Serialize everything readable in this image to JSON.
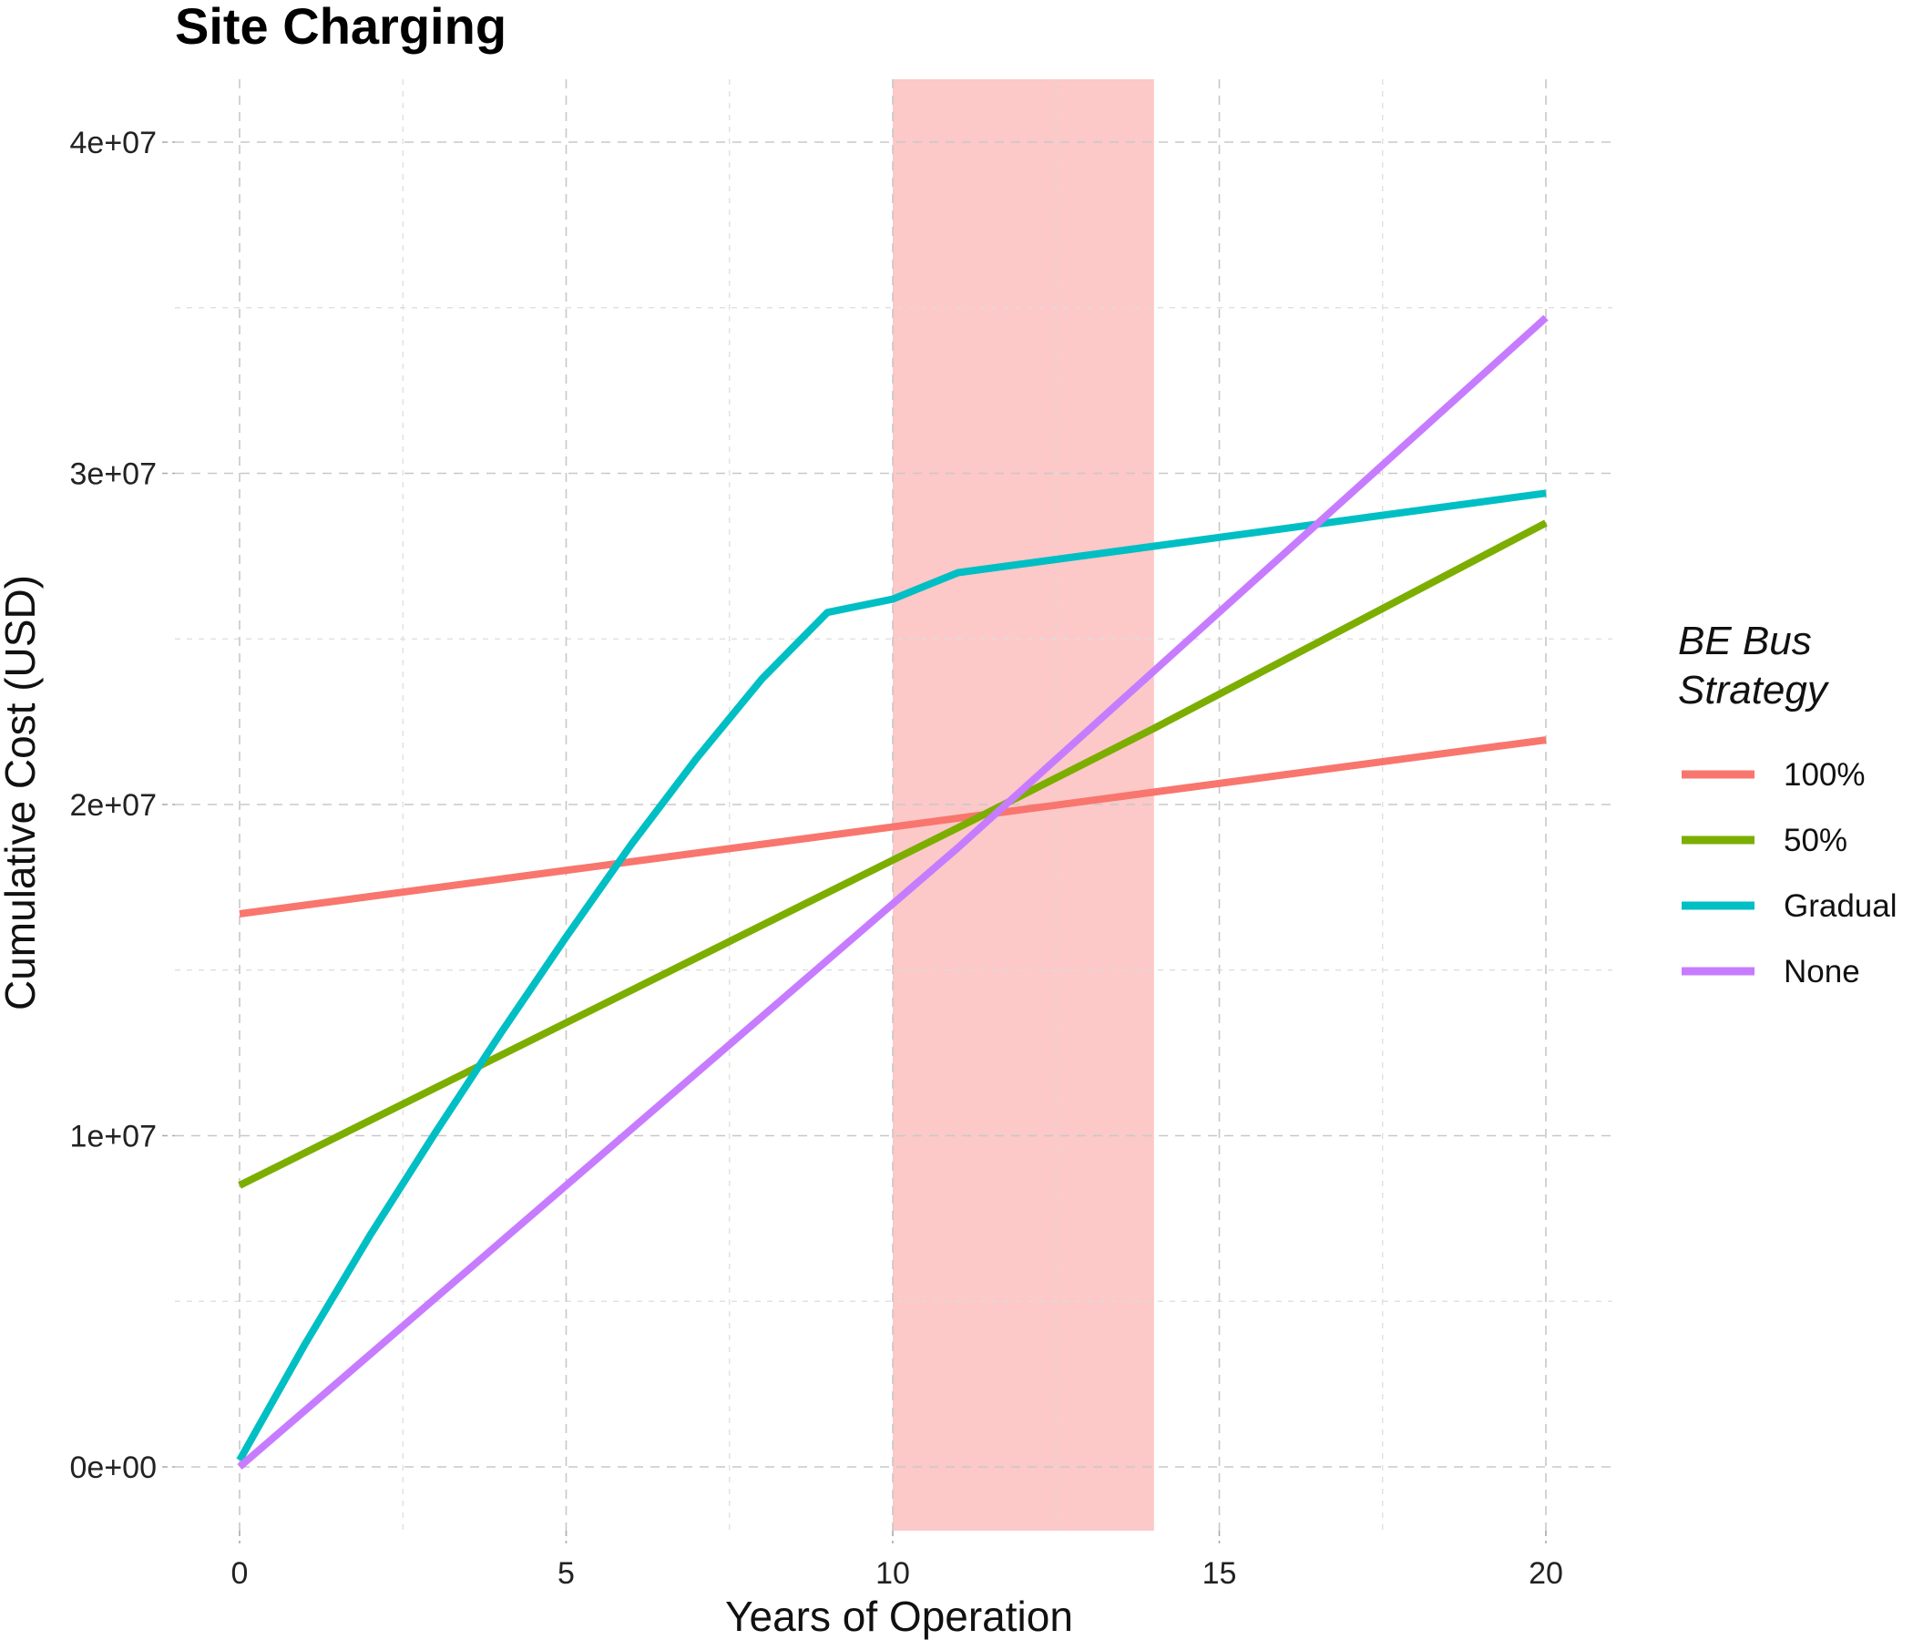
{
  "chart_data": {
    "type": "line",
    "title": "Site Charging",
    "xlabel": "Years of Operation",
    "ylabel": "Cumulative Cost (USD)",
    "xlim": [
      -1.2,
      21.0
    ],
    "ylim": [
      -1900000,
      42000000
    ],
    "x_ticks": [
      0,
      5,
      10,
      15,
      20
    ],
    "x_tick_labels": [
      "0",
      "5",
      "10",
      "15",
      "20"
    ],
    "y_ticks": [
      0,
      10000000,
      20000000,
      30000000,
      40000000
    ],
    "y_tick_labels": [
      "0e+00",
      "1e+07",
      "2e+07",
      "3e+07",
      "4e+07"
    ],
    "x_minor": [
      2.5,
      7.5,
      12.5,
      17.5
    ],
    "y_minor": [
      5000000,
      15000000,
      25000000,
      35000000
    ],
    "grid": true,
    "shaded_region": {
      "x": [
        10,
        14
      ],
      "color": "#fcc8c8"
    },
    "legend": {
      "title_lines": [
        "BE Bus",
        "Strategy"
      ],
      "position": "right"
    },
    "series": [
      {
        "name": "100%",
        "color": "#f8766d",
        "x": [
          0,
          20
        ],
        "y": [
          16700000,
          21950000
        ]
      },
      {
        "name": "50%",
        "color": "#7cae00",
        "x": [
          0,
          11,
          14,
          20
        ],
        "y": [
          8500000,
          19300000,
          22300000,
          28500000
        ]
      },
      {
        "name": "Gradual",
        "color": "#00bfc4",
        "x": [
          0,
          1,
          2,
          3,
          4,
          5,
          6,
          7,
          8,
          9,
          10,
          11,
          14,
          20
        ],
        "y": [
          200000,
          3700000,
          7000000,
          10100000,
          13100000,
          16000000,
          18800000,
          21400000,
          23800000,
          25800000,
          26200000,
          27000000,
          27800000,
          29400000
        ]
      },
      {
        "name": "None",
        "color": "#c77cff",
        "x": [
          0,
          11,
          20
        ],
        "y": [
          0,
          18700000,
          34700000
        ]
      }
    ]
  }
}
